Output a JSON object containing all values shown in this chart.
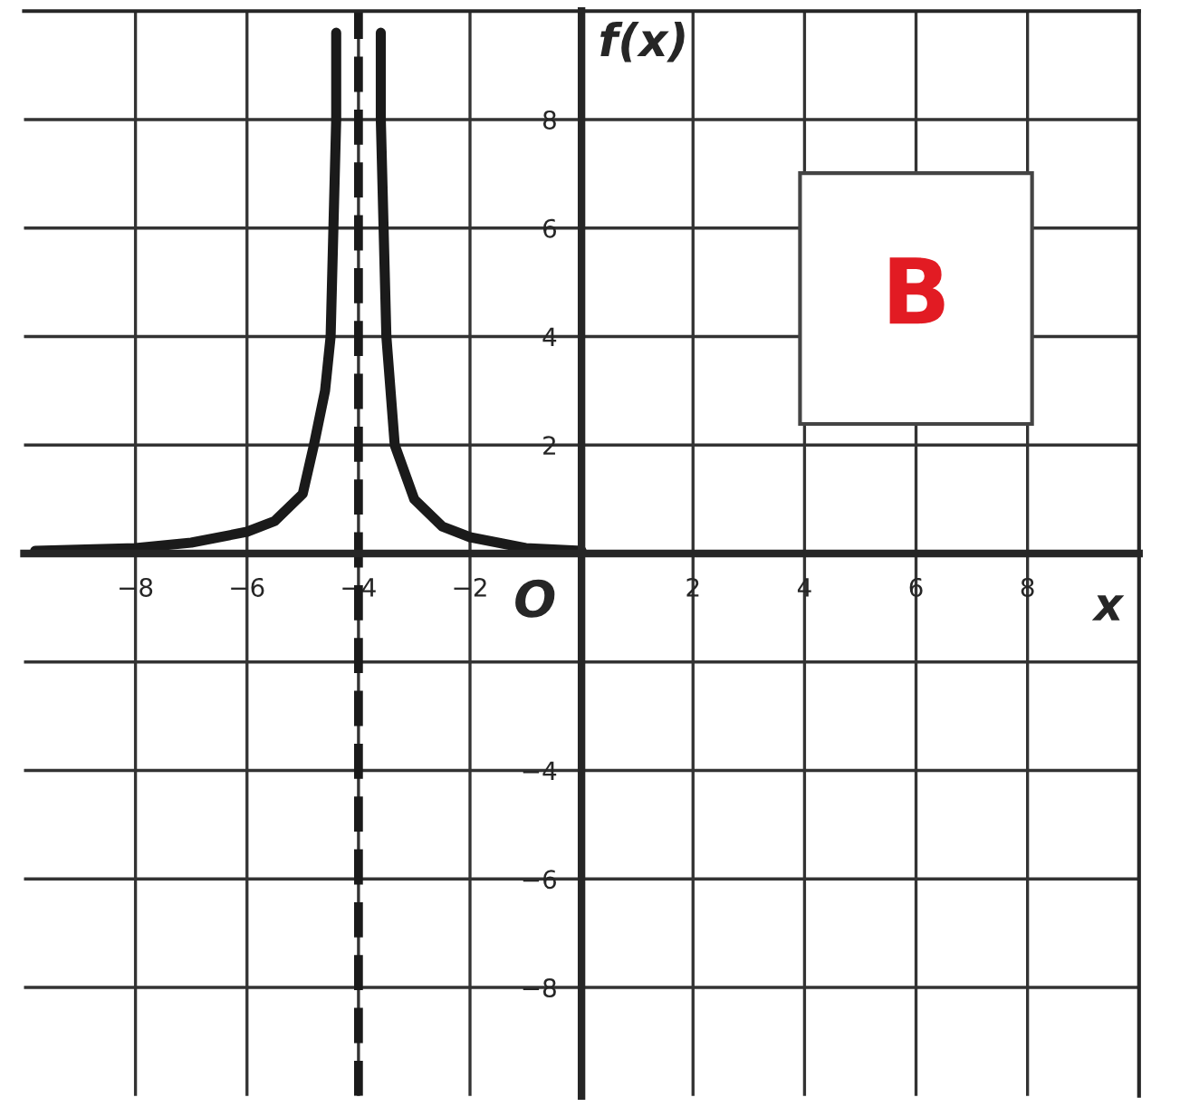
{
  "chart_data": {
    "type": "line",
    "xlabel": "x",
    "ylabel": "f(x)",
    "xlim": [
      -10,
      10
    ],
    "ylim": [
      -10,
      10
    ],
    "xticks": [
      -8,
      -6,
      -4,
      -2,
      2,
      4,
      6,
      8
    ],
    "yticks": [
      -8,
      -6,
      -4,
      {
        "value": -2,
        "label": null
      },
      2,
      4,
      6,
      8
    ],
    "grid": true,
    "line_style": "solid",
    "marker": "none",
    "series": [
      {
        "color": "#1a1a1a",
        "x": [
          -9.8,
          -8,
          -7,
          -6,
          -5.5,
          -5,
          -4.8,
          -4.6,
          -4.5,
          -4.45,
          -4.4,
          -4.4,
          null,
          -3.6,
          -3.6,
          -3.55,
          -3.5,
          -3.35,
          -3,
          -2.5,
          -2,
          -1,
          0
        ],
        "values": [
          0.05,
          0.1,
          0.2,
          0.4,
          0.6,
          1.1,
          2,
          3,
          4,
          6,
          8,
          9.6,
          null,
          9.6,
          8,
          6,
          4,
          2,
          1,
          0.5,
          0.3,
          0.1,
          0.05
        ]
      }
    ],
    "ref_lines": [
      {
        "axis": "x",
        "value": -4,
        "label": null,
        "color": "#1a1a1a",
        "line_style": "dashed"
      }
    ],
    "annotations": [
      {
        "text": "O",
        "x": 0,
        "y": 0
      },
      "B"
    ]
  }
}
